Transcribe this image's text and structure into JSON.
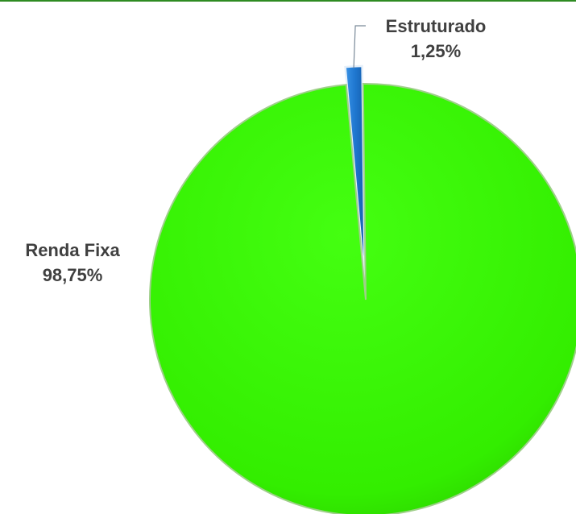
{
  "chart_data": {
    "type": "pie",
    "title": "",
    "slices": [
      {
        "label": "Estruturado",
        "value": 1.25,
        "value_label": "1,25%",
        "color": "#1f77d0"
      },
      {
        "label": "Renda Fixa",
        "value": 98.75,
        "value_label": "98,75%",
        "color": "#33ee00"
      }
    ],
    "start_angle_degrees": -5.2,
    "direction": "clockwise",
    "data_labels": "outside",
    "legend": "none",
    "exploded_slice": "Estruturado"
  }
}
